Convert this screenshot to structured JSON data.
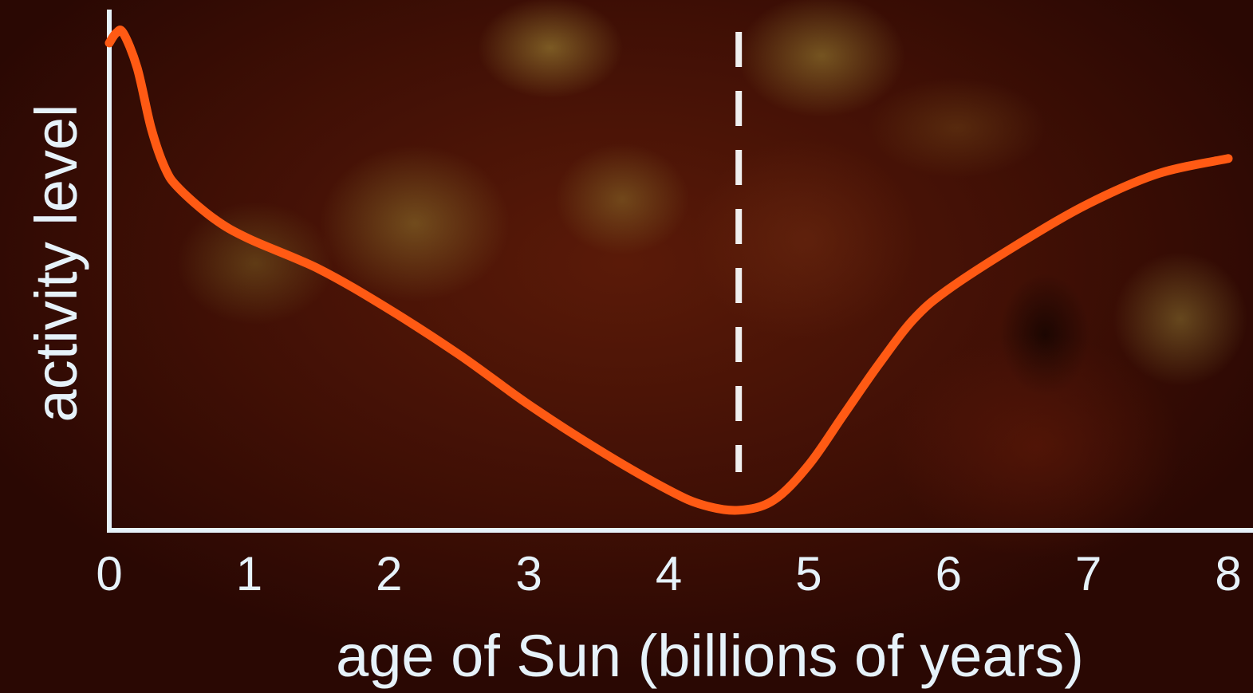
{
  "chart_data": {
    "type": "line",
    "xlabel": "age of Sun (billions of years)",
    "ylabel": "activity level",
    "xlim": [
      0,
      8
    ],
    "ylim": [
      0,
      1
    ],
    "x_ticks": [
      "0",
      "1",
      "2",
      "3",
      "4",
      "5",
      "6",
      "7",
      "8"
    ],
    "y_ticks_shown": false,
    "grid": false,
    "legend": "none",
    "series": [
      {
        "x": [
          0.0,
          0.05,
          0.1,
          0.2,
          0.3,
          0.4,
          0.5,
          0.75,
          1.0,
          1.5,
          2.0,
          2.5,
          3.0,
          3.5,
          4.0,
          4.25,
          4.5,
          4.75,
          5.0,
          5.25,
          5.5,
          5.75,
          6.0,
          6.5,
          7.0,
          7.5,
          8.0
        ],
        "y": [
          0.97,
          0.99,
          0.99,
          0.92,
          0.8,
          0.72,
          0.68,
          0.62,
          0.58,
          0.52,
          0.44,
          0.35,
          0.25,
          0.16,
          0.08,
          0.05,
          0.04,
          0.06,
          0.13,
          0.23,
          0.33,
          0.42,
          0.48,
          0.57,
          0.65,
          0.71,
          0.74
        ]
      }
    ],
    "marker_line": {
      "x": 4.5,
      "style": "dashed"
    },
    "colors": {
      "line": "#ff5a14",
      "axes": "#e6f2fa",
      "marker_line": "#f0f0f0",
      "text": "#e6f2fa"
    }
  }
}
